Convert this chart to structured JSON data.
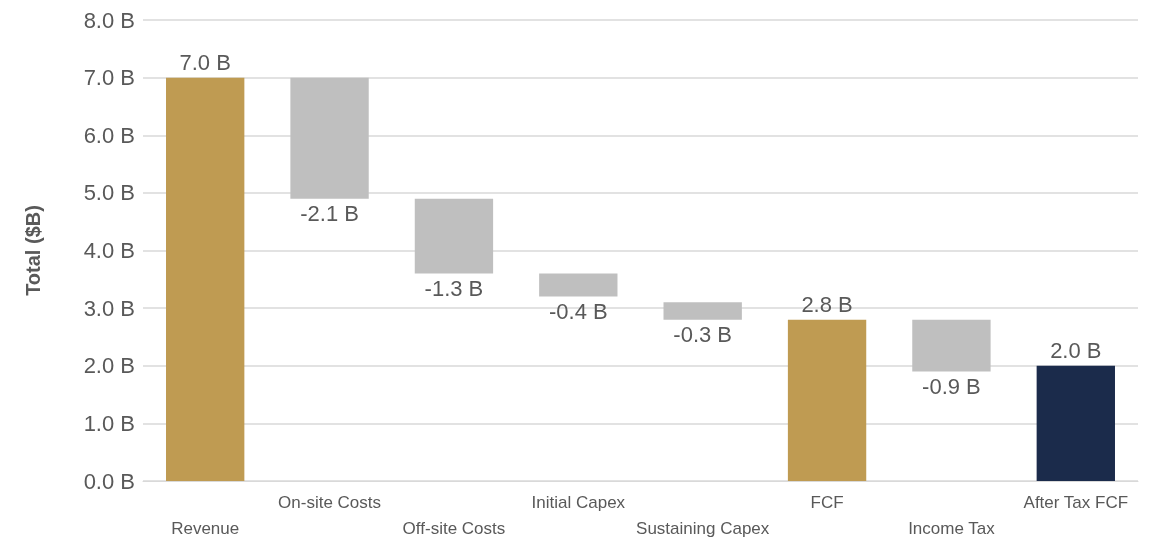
{
  "chart_data": {
    "type": "bar",
    "ylabel": "Total ($B)",
    "categories": [
      "Revenue",
      "On-site Costs",
      "Off-site Costs",
      "Initial Capex",
      "Sustaining Capex",
      "FCF",
      "Income Tax",
      "After Tax FCF"
    ],
    "values": [
      7.0,
      -2.1,
      -1.3,
      -0.4,
      -0.3,
      2.8,
      -0.9,
      2.0
    ],
    "base": [
      0,
      7.0,
      4.9,
      3.6,
      3.1,
      0,
      2.8,
      0
    ],
    "colors": [
      "#bf9b52",
      "#bfbfbf",
      "#bfbfbf",
      "#bfbfbf",
      "#bfbfbf",
      "#bf9b52",
      "#bfbfbf",
      "#1b2b4b"
    ],
    "value_labels": [
      "7.0 B",
      "-2.1 B",
      "-1.3 B",
      "-0.4 B",
      "-0.3 B",
      "2.8 B",
      "-0.9 B",
      "2.0 B"
    ],
    "ylim": [
      0,
      8
    ],
    "yticks": [
      {
        "value": 0,
        "label": "0.0 B"
      },
      {
        "value": 1,
        "label": "1.0 B"
      },
      {
        "value": 2,
        "label": "2.0 B"
      },
      {
        "value": 3,
        "label": "3.0 B"
      },
      {
        "value": 4,
        "label": "4.0 B"
      },
      {
        "value": 5,
        "label": "5.0 B"
      },
      {
        "value": 6,
        "label": "6.0 B"
      },
      {
        "value": 7,
        "label": "7.0 B"
      },
      {
        "value": 8,
        "label": "8.0 B"
      }
    ],
    "grid": "y"
  }
}
